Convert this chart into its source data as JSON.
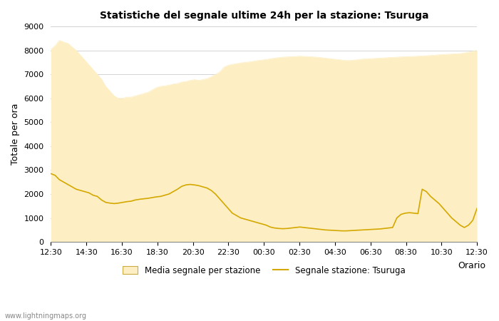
{
  "title": "Statistiche del segnale ultime 24h per la stazione: Tsuruga",
  "xlabel": "Orario",
  "ylabel": "Totale per ora",
  "ylim": [
    0,
    9000
  ],
  "yticks": [
    0,
    1000,
    2000,
    3000,
    4000,
    5000,
    6000,
    7000,
    8000,
    9000
  ],
  "fill_color": "#FDEFC3",
  "line_color": "#D4A800",
  "background_color": "#ffffff",
  "watermark": "www.lightningmaps.org",
  "legend_fill_label": "Media segnale per stazione",
  "legend_line_label": "Segnale stazione: Tsuruga",
  "tick_labels": [
    "12:30",
    "14:30",
    "16:30",
    "18:30",
    "20:30",
    "22:30",
    "00:30",
    "02:30",
    "04:30",
    "06:30",
    "08:30",
    "10:30",
    "12:30"
  ],
  "fill_values": [
    8050,
    8200,
    8420,
    8350,
    8300,
    8150,
    8000,
    7800,
    7600,
    7400,
    7200,
    7000,
    6800,
    6500,
    6300,
    6100,
    6000,
    6000,
    6050,
    6050,
    6100,
    6150,
    6200,
    6250,
    6350,
    6450,
    6500,
    6520,
    6550,
    6600,
    6620,
    6680,
    6700,
    6750,
    6780,
    6750,
    6780,
    6820,
    6900,
    7000,
    7100,
    7300,
    7380,
    7420,
    7450,
    7480,
    7500,
    7520,
    7550,
    7580,
    7600,
    7620,
    7650,
    7680,
    7700,
    7720,
    7730,
    7740,
    7750,
    7760,
    7750,
    7740,
    7730,
    7720,
    7700,
    7680,
    7660,
    7640,
    7620,
    7600,
    7580,
    7580,
    7600,
    7620,
    7640,
    7650,
    7660,
    7670,
    7680,
    7690,
    7700,
    7710,
    7720,
    7730,
    7740,
    7750,
    7750,
    7760,
    7770,
    7780,
    7790,
    7800,
    7820,
    7830,
    7840,
    7850,
    7860,
    7870,
    7900,
    7930,
    7960,
    8000
  ],
  "line_values": [
    2850,
    2780,
    2600,
    2500,
    2400,
    2300,
    2200,
    2150,
    2100,
    2050,
    1950,
    1900,
    1750,
    1650,
    1620,
    1600,
    1620,
    1650,
    1680,
    1700,
    1750,
    1780,
    1800,
    1820,
    1850,
    1880,
    1900,
    1950,
    2000,
    2100,
    2200,
    2320,
    2380,
    2400,
    2380,
    2350,
    2300,
    2250,
    2150,
    2000,
    1800,
    1600,
    1400,
    1200,
    1100,
    1000,
    950,
    900,
    850,
    800,
    750,
    700,
    620,
    580,
    560,
    550,
    560,
    580,
    600,
    620,
    600,
    580,
    560,
    540,
    520,
    500,
    490,
    480,
    470,
    460,
    460,
    470,
    480,
    490,
    500,
    510,
    520,
    530,
    540,
    560,
    580,
    600,
    1000,
    1150,
    1200,
    1220,
    1200,
    1180,
    2200,
    2100,
    1900,
    1750,
    1600,
    1400,
    1200,
    1000,
    850,
    700,
    600,
    700,
    900,
    1400
  ]
}
